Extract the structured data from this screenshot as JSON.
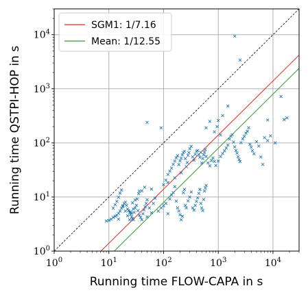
{
  "chart_data": {
    "type": "scatter",
    "xlabel": "Running time FLOW-CAPA in s",
    "ylabel": "Running time QSTPI-HOP in s",
    "xscale": "log",
    "yscale": "log",
    "xlim": [
      1,
      30000
    ],
    "ylim": [
      1,
      30000
    ],
    "x_ticks": [
      1,
      10,
      100,
      1000,
      10000
    ],
    "y_ticks": [
      1,
      10,
      100,
      1000,
      10000
    ],
    "tick_base": "10",
    "tick_exponents": [
      "0",
      "1",
      "2",
      "3",
      "4"
    ],
    "grid": true,
    "legend_position": "top-left",
    "reference_line": {
      "style": "dashed",
      "color": "#000000",
      "ratio": 1
    },
    "series": [
      {
        "name": "SGM1: 1/7.16",
        "kind": "line",
        "ratio": 0.1397,
        "color": "#e8261e"
      },
      {
        "name": "Mean: 1/12.55",
        "kind": "line",
        "ratio": 0.0797,
        "color": "#2e9a2e"
      },
      {
        "kind": "scatter",
        "marker": "x",
        "color": "#1f77b4",
        "points": [
          [
            9,
            3.6
          ],
          [
            10,
            3.7
          ],
          [
            11,
            3.9
          ],
          [
            12,
            4.2
          ],
          [
            13,
            4.4
          ],
          [
            14,
            4.6
          ],
          [
            15,
            3.9
          ],
          [
            15,
            5.0
          ],
          [
            16,
            5.5
          ],
          [
            17,
            6.2
          ],
          [
            18,
            6.9
          ],
          [
            19,
            7.6
          ],
          [
            20,
            8.0
          ],
          [
            21,
            7.0
          ],
          [
            22,
            6.0
          ],
          [
            23,
            5.6
          ],
          [
            24,
            5.2
          ],
          [
            25,
            4.8
          ],
          [
            26,
            4.3
          ],
          [
            27,
            4.0
          ],
          [
            28,
            3.8
          ],
          [
            29,
            5.2
          ],
          [
            30,
            6.3
          ],
          [
            32,
            7.0
          ],
          [
            34,
            5.6
          ],
          [
            36,
            4.6
          ],
          [
            38,
            4.2
          ],
          [
            40,
            3.8
          ],
          [
            42,
            4.9
          ],
          [
            44,
            5.8
          ],
          [
            46,
            6.6
          ],
          [
            48,
            7.6
          ],
          [
            50,
            8.9
          ],
          [
            55,
            6.3
          ],
          [
            60,
            5.1
          ],
          [
            65,
            7.6
          ],
          [
            70,
            9.5
          ],
          [
            12,
            6.2
          ],
          [
            13,
            7.2
          ],
          [
            14,
            8.3
          ],
          [
            15,
            9.9
          ],
          [
            16,
            11.8
          ],
          [
            17,
            13.5
          ],
          [
            18,
            6.6
          ],
          [
            20,
            5.5
          ],
          [
            22,
            4.5
          ],
          [
            24,
            3.8
          ],
          [
            26,
            5.0
          ],
          [
            28,
            6.0
          ],
          [
            30,
            8.8
          ],
          [
            35,
            11.5
          ],
          [
            40,
            13.0
          ],
          [
            45,
            15.2
          ],
          [
            50,
            4.3
          ],
          [
            80,
            5.5
          ],
          [
            90,
            6.3
          ],
          [
            100,
            6.9
          ],
          [
            110,
            7.6
          ],
          [
            120,
            4.9
          ],
          [
            130,
            9.2
          ],
          [
            140,
            10.9
          ],
          [
            150,
            12.1
          ],
          [
            160,
            15.5
          ],
          [
            170,
            8.4
          ],
          [
            180,
            6.3
          ],
          [
            190,
            5.5
          ],
          [
            200,
            4.7
          ],
          [
            210,
            3.8
          ],
          [
            220,
            4.4
          ],
          [
            230,
            12.0
          ],
          [
            240,
            13.8
          ],
          [
            250,
            7.0
          ],
          [
            260,
            6.3
          ],
          [
            280,
            8.5
          ],
          [
            300,
            10.0
          ],
          [
            320,
            12.4
          ],
          [
            340,
            6.3
          ],
          [
            360,
            5.7
          ],
          [
            380,
            7.0
          ],
          [
            400,
            8.3
          ],
          [
            420,
            9.6
          ],
          [
            440,
            11.7
          ],
          [
            460,
            13.8
          ],
          [
            480,
            7.6
          ],
          [
            500,
            6.3
          ],
          [
            520,
            5.6
          ],
          [
            540,
            9.0
          ],
          [
            560,
            12.9
          ],
          [
            580,
            14.7
          ],
          [
            600,
            16.4
          ],
          [
            100,
            16.8
          ],
          [
            110,
            20.5
          ],
          [
            120,
            26.1
          ],
          [
            130,
            30.1
          ],
          [
            140,
            34.2
          ],
          [
            150,
            40.0
          ],
          [
            160,
            46.1
          ],
          [
            170,
            53.0
          ],
          [
            180,
            57.9
          ],
          [
            190,
            39.8
          ],
          [
            200,
            46.4
          ],
          [
            210,
            52.0
          ],
          [
            220,
            60.0
          ],
          [
            230,
            66.4
          ],
          [
            240,
            70.0
          ],
          [
            250,
            51.2
          ],
          [
            260,
            36.3
          ],
          [
            270,
            43.4
          ],
          [
            280,
            58.8
          ],
          [
            290,
            66.2
          ],
          [
            300,
            78.0
          ],
          [
            320,
            86.7
          ],
          [
            340,
            55.2
          ],
          [
            360,
            47.9
          ],
          [
            380,
            61.8
          ],
          [
            400,
            70.2
          ],
          [
            420,
            72.4
          ],
          [
            440,
            60.8
          ],
          [
            460,
            54.3
          ],
          [
            480,
            66.6
          ],
          [
            500,
            42.4
          ],
          [
            520,
            51.5
          ],
          [
            540,
            60.1
          ],
          [
            560,
            67.4
          ],
          [
            580,
            75.3
          ],
          [
            600,
            56.1
          ],
          [
            650,
            42.7
          ],
          [
            700,
            37.6
          ],
          [
            750,
            47.2
          ],
          [
            800,
            52.8
          ],
          [
            850,
            45.4
          ],
          [
            900,
            38.3
          ],
          [
            1000,
            46.1
          ],
          [
            1100,
            55.9
          ],
          [
            1200,
            63.5
          ],
          [
            1300,
            71.3
          ],
          [
            1400,
            80.2
          ],
          [
            1500,
            91.0
          ],
          [
            1600,
            117.7
          ],
          [
            1700,
            133.6
          ],
          [
            1800,
            141.7
          ],
          [
            1900,
            104.0
          ],
          [
            2000,
            84.4
          ],
          [
            2100,
            72.3
          ],
          [
            2200,
            64.7
          ],
          [
            2300,
            55.7
          ],
          [
            2400,
            49.4
          ],
          [
            2500,
            45.2
          ],
          [
            2600,
            100.8
          ],
          [
            2800,
            118.7
          ],
          [
            3000,
            132.7
          ],
          [
            3200,
            151.9
          ],
          [
            3400,
            164.6
          ],
          [
            3600,
            190.6
          ],
          [
            3800,
            94.3
          ],
          [
            4000,
            83.2
          ],
          [
            4200,
            71.6
          ],
          [
            4500,
            63.1
          ],
          [
            5000,
            105.5
          ],
          [
            5500,
            87.5
          ],
          [
            6000,
            55.0
          ],
          [
            6500,
            40.0
          ],
          [
            7000,
            125.0
          ],
          [
            8000,
            265.0
          ],
          [
            9000,
            135.0
          ],
          [
            2000,
            9400
          ],
          [
            2500,
            3400
          ],
          [
            1500,
            480
          ],
          [
            1200,
            320
          ],
          [
            1000,
            260
          ],
          [
            14000,
            720
          ],
          [
            16000,
            270
          ],
          [
            18000,
            290
          ],
          [
            11000,
            100
          ],
          [
            8000,
            110
          ],
          [
            600,
            190
          ],
          [
            700,
            250
          ],
          [
            850,
            160
          ],
          [
            950,
            200
          ],
          [
            1100,
            140
          ],
          [
            50,
            240
          ],
          [
            90,
            190
          ],
          [
            120,
            18.5
          ],
          [
            160,
            22.6
          ],
          [
            210,
            28.0
          ],
          [
            25,
            5.3
          ],
          [
            27,
            7.8
          ],
          [
            33,
            9.2
          ],
          [
            36,
            12.8
          ],
          [
            60,
            14.0
          ]
        ]
      }
    ]
  }
}
